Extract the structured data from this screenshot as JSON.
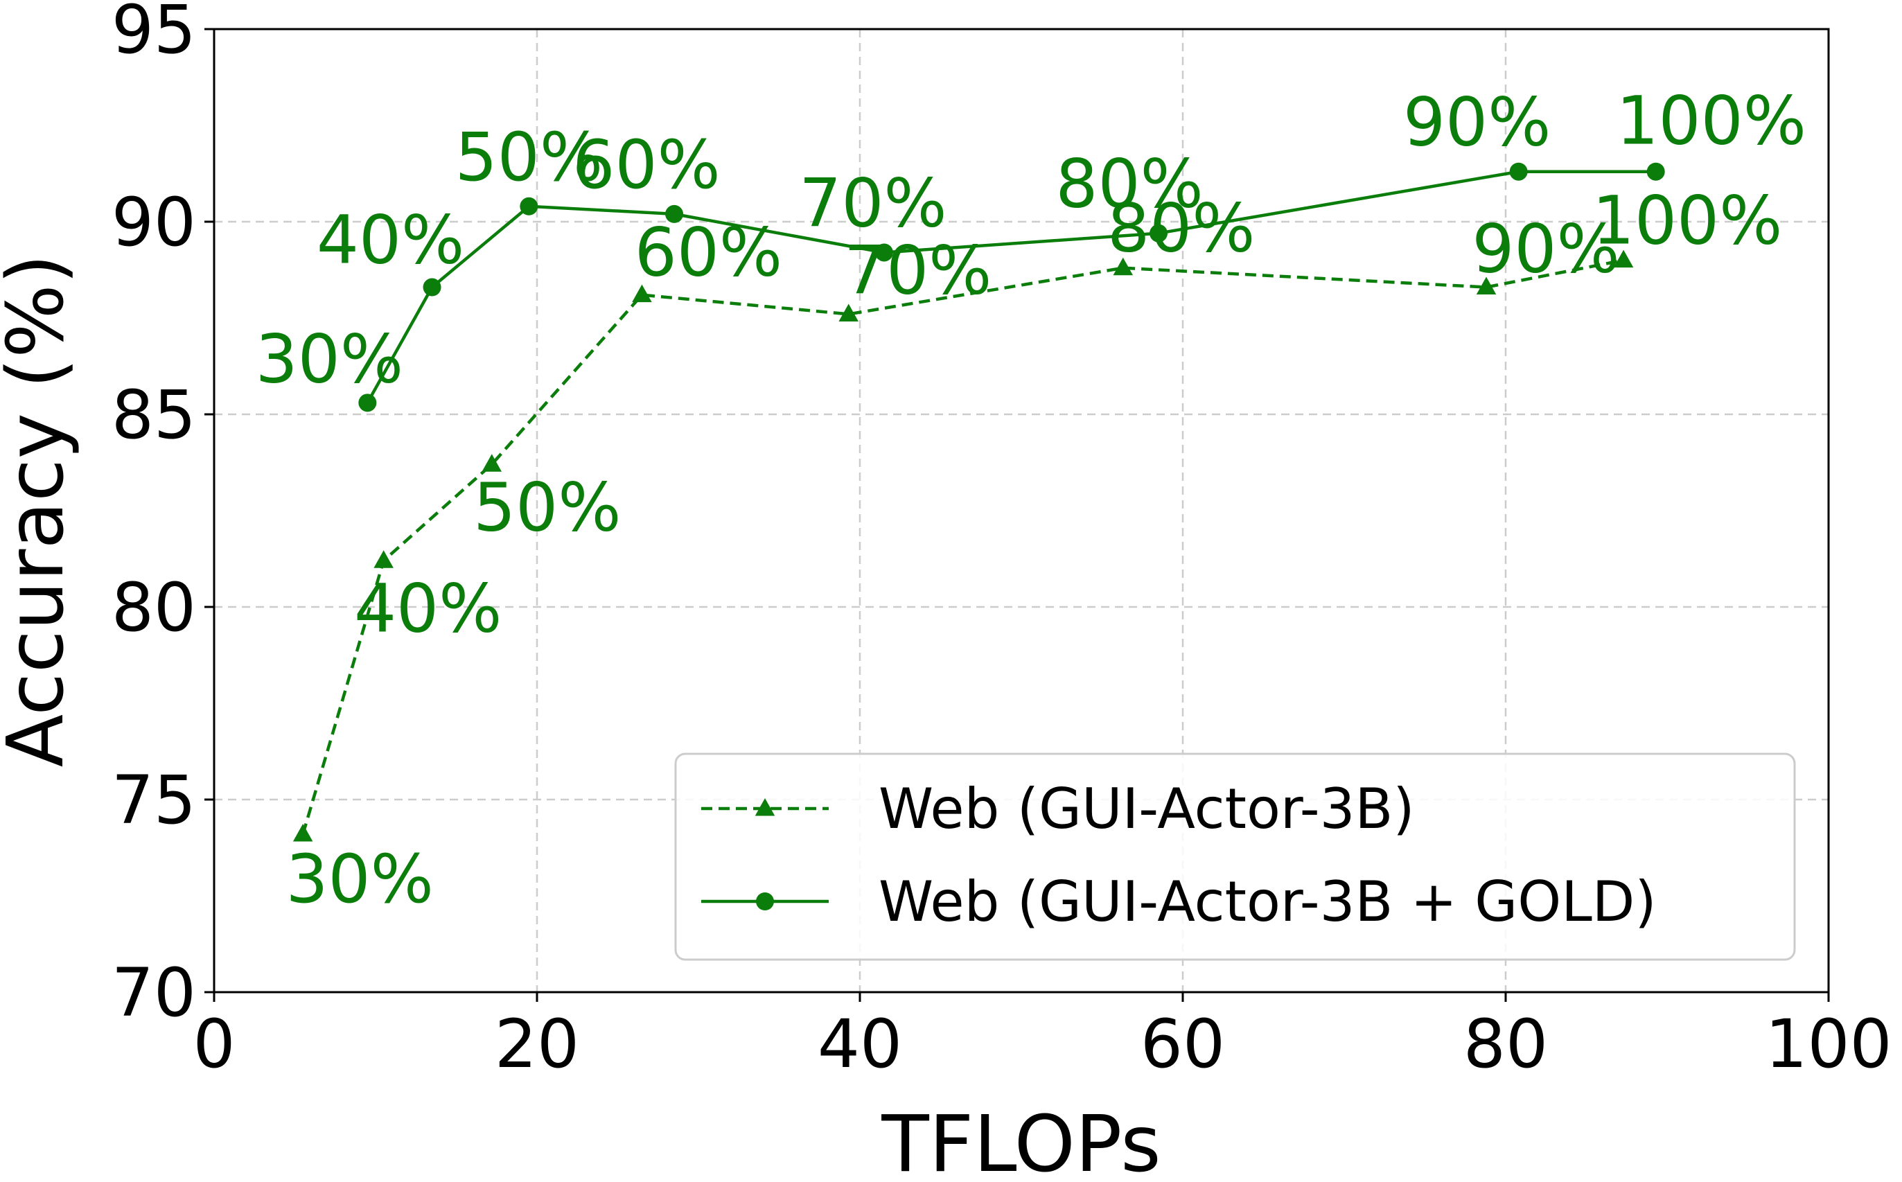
{
  "colors": {
    "series": "#0a7d0a",
    "axis": "#000000",
    "grid": "#cccccc"
  },
  "chart_data": {
    "type": "line",
    "xlabel": "TFLOPs",
    "ylabel": "Accuracy (%)",
    "xlim": [
      0,
      100
    ],
    "ylim": [
      70,
      95
    ],
    "xticks": [
      0,
      20,
      40,
      60,
      80,
      100
    ],
    "yticks": [
      70,
      75,
      80,
      85,
      90,
      95
    ],
    "grid": true,
    "legend_position": "lower-right",
    "series": [
      {
        "name": "Web (GUI-Actor-3B)",
        "marker": "triangle",
        "line_style": "dashed",
        "x": [
          5.5,
          10.5,
          17.2,
          26.5,
          39.3,
          56.3,
          78.8,
          87.3
        ],
        "y": [
          74.1,
          81.2,
          83.7,
          88.1,
          87.6,
          88.8,
          88.3,
          89.0
        ],
        "labels": [
          "30%",
          "40%",
          "50%",
          "60%",
          "70%",
          "80%",
          "90%",
          "100%"
        ]
      },
      {
        "name": "Web (GUI-Actor-3B + GOLD)",
        "marker": "circle",
        "line_style": "solid",
        "x": [
          9.5,
          13.5,
          19.5,
          28.5,
          41.5,
          58.5,
          80.8,
          89.3
        ],
        "y": [
          85.3,
          88.3,
          90.4,
          90.2,
          89.2,
          89.7,
          91.3,
          91.3
        ],
        "labels": [
          "30%",
          "40%",
          "50%",
          "60%",
          "70%",
          "80%",
          "90%",
          "100%"
        ]
      }
    ]
  }
}
